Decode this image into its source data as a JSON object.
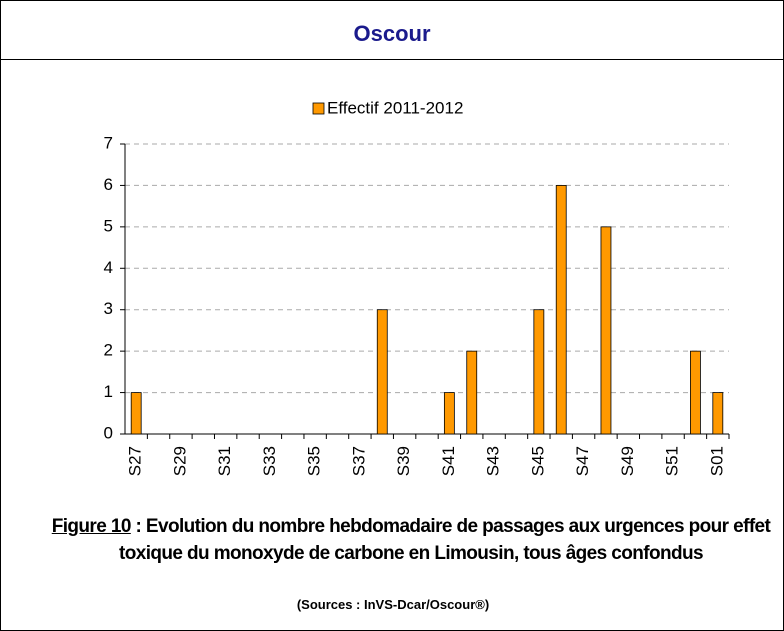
{
  "header": {
    "title": "Oscour"
  },
  "chart_data": {
    "type": "bar",
    "legend": "Effectif 2011-2012",
    "color": "#ff9900",
    "categories": [
      "S27",
      null,
      "S29",
      null,
      "S31",
      null,
      "S33",
      null,
      "S35",
      null,
      "S37",
      null,
      "S39",
      null,
      "S41",
      null,
      "S43",
      null,
      "S45",
      null,
      "S47",
      null,
      "S49",
      null,
      "S51",
      null,
      "S01"
    ],
    "values": [
      1,
      0,
      0,
      0,
      0,
      0,
      0,
      0,
      0,
      0,
      0,
      3,
      0,
      0,
      1,
      2,
      0,
      0,
      3,
      6,
      0,
      5,
      0,
      0,
      0,
      2,
      1
    ],
    "ylim": [
      0,
      7
    ],
    "yticks": [
      0,
      1,
      2,
      3,
      4,
      5,
      6,
      7
    ],
    "grid": true
  },
  "caption": {
    "figure": "Figure 10",
    "text": ": Evolution du nombre hebdomadaire de passages aux urgences pour effet toxique du monoxyde de carbone en Limousin, tous âges confondus",
    "source": "(Sources : InVS-Dcar/Oscour®)"
  }
}
